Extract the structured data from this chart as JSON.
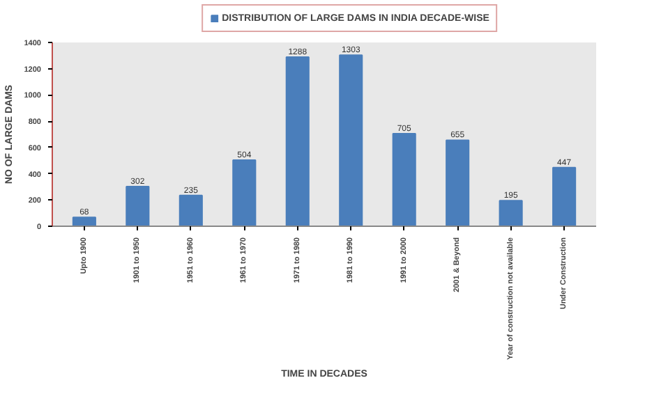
{
  "chart_data": {
    "type": "bar",
    "categories": [
      "Upto 1900",
      "1901 to 1950",
      "1951 to 1960",
      "1961 to 1970",
      "1971 to 1980",
      "1981 to 1990",
      "1991 to 2000",
      "2001 & Beyond",
      "Year of construction not available",
      "Under Construction"
    ],
    "series": [
      {
        "name": "DISTRIBUTION OF LARGE DAMS IN INDIA DECADE-WISE",
        "color": "#4a7ebb",
        "values": [
          68,
          302,
          235,
          504,
          1288,
          1303,
          705,
          655,
          195,
          447
        ]
      }
    ],
    "xlabel": "TIME IN DECADES",
    "ylabel": "NO OF LARGE DAMS",
    "ylim": [
      0,
      1400
    ],
    "yticks": [
      0,
      200,
      400,
      600,
      800,
      1000,
      1200,
      1400
    ],
    "data_labels": true,
    "legend": "top"
  }
}
